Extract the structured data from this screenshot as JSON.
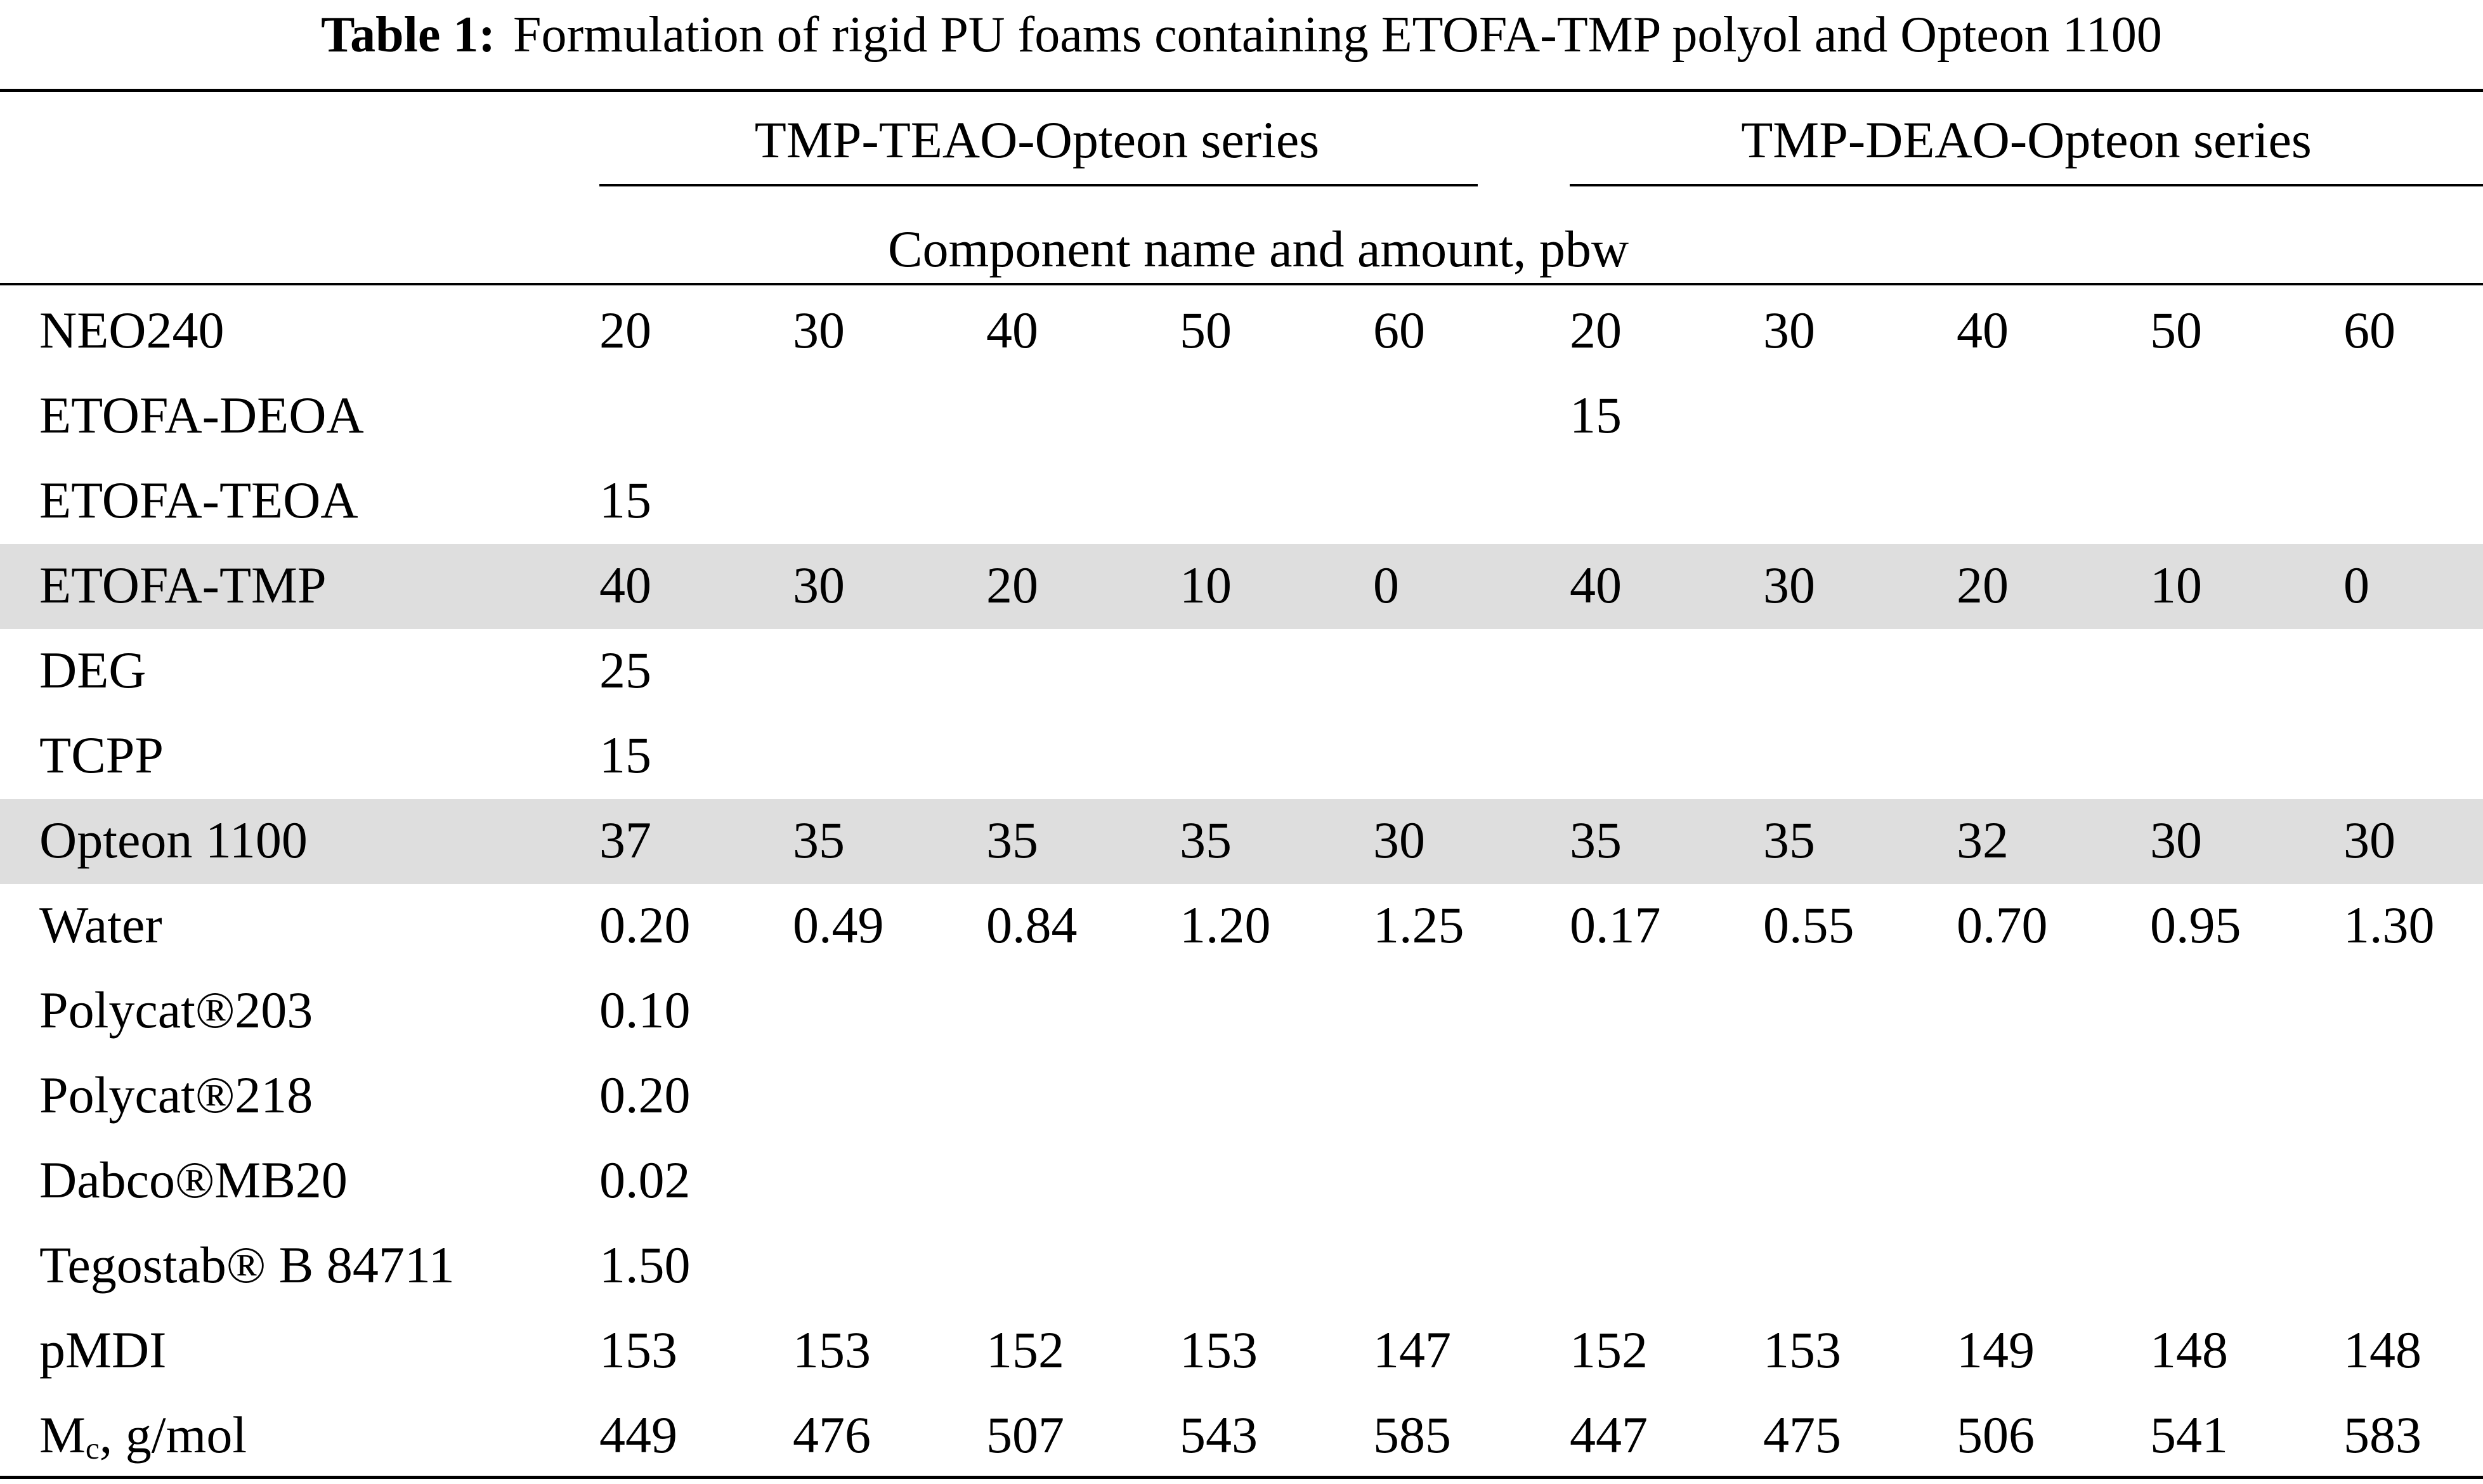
{
  "caption": {
    "label": "Table 1:",
    "text": "Formulation of rigid PU foams containing ETOFA-TMP polyol and Opteon 1100"
  },
  "header": {
    "group1": "TMP-TEAO-Opteon series",
    "group2": "TMP-DEAO-Opteon series",
    "subheader": "Component name and amount, pbw"
  },
  "rows": [
    {
      "label": "NEO240",
      "cells": [
        "20",
        "30",
        "40",
        "50",
        "60",
        "20",
        "30",
        "40",
        "50",
        "60"
      ],
      "shaded": false
    },
    {
      "label": "ETOFA-DEOA",
      "cells": [
        "",
        "",
        "",
        "",
        "",
        "15",
        "",
        "",
        "",
        ""
      ],
      "shaded": false
    },
    {
      "label": "ETOFA-TEOA",
      "cells": [
        "15",
        "",
        "",
        "",
        "",
        "",
        "",
        "",
        "",
        ""
      ],
      "shaded": false
    },
    {
      "label": "ETOFA-TMP",
      "cells": [
        "40",
        "30",
        "20",
        "10",
        "0",
        "40",
        "30",
        "20",
        "10",
        "0"
      ],
      "shaded": true
    },
    {
      "label": "DEG",
      "cells": [
        "25",
        "",
        "",
        "",
        "",
        "",
        "",
        "",
        "",
        ""
      ],
      "shaded": false
    },
    {
      "label": "TCPP",
      "cells": [
        "15",
        "",
        "",
        "",
        "",
        "",
        "",
        "",
        "",
        ""
      ],
      "shaded": false
    },
    {
      "label": "Opteon 1100",
      "cells": [
        "37",
        "35",
        "35",
        "35",
        "30",
        "35",
        "35",
        "32",
        "30",
        "30"
      ],
      "shaded": true
    },
    {
      "label": "Water",
      "cells": [
        "0.20",
        "0.49",
        "0.84",
        "1.20",
        "1.25",
        "0.17",
        "0.55",
        "0.70",
        "0.95",
        "1.30"
      ],
      "shaded": false
    },
    {
      "label": "Polycat®203",
      "cells": [
        "0.10",
        "",
        "",
        "",
        "",
        "",
        "",
        "",
        "",
        ""
      ],
      "shaded": false
    },
    {
      "label": "Polycat®218",
      "cells": [
        "0.20",
        "",
        "",
        "",
        "",
        "",
        "",
        "",
        "",
        ""
      ],
      "shaded": false
    },
    {
      "label": "Dabco®MB20",
      "cells": [
        "0.02",
        "",
        "",
        "",
        "",
        "",
        "",
        "",
        "",
        ""
      ],
      "shaded": false
    },
    {
      "label": "Tegostab® B 84711",
      "cells": [
        "1.50",
        "",
        "",
        "",
        "",
        "",
        "",
        "",
        "",
        ""
      ],
      "shaded": false
    },
    {
      "label": "pMDI",
      "cells": [
        "153",
        "153",
        "152",
        "153",
        "147",
        "152",
        "153",
        "149",
        "148",
        "148"
      ],
      "shaded": false
    },
    {
      "label_main": "M",
      "label_sub": "c",
      "label_rest": ", g/mol",
      "cells": [
        "449",
        "476",
        "507",
        "543",
        "585",
        "447",
        "475",
        "506",
        "541",
        "583"
      ],
      "shaded": false
    }
  ]
}
